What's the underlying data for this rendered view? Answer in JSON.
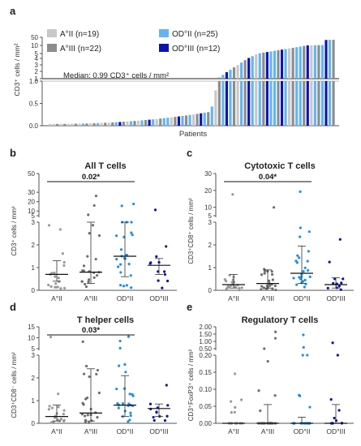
{
  "panel_letters": [
    "a",
    "b",
    "c",
    "d",
    "e"
  ],
  "colors": {
    "A_II": "#c8c8c8",
    "A_III": "#8c8c8c",
    "OD_II": "#64b4f0",
    "OD_III": "#0a14b4",
    "A_II_dot": "#9a9a9a",
    "A_III_dot": "#6e6e6e",
    "OD_II_dot": "#1e90e6",
    "OD_III_dot": "#0a14a0",
    "axis": "#555555"
  },
  "chart_data": [
    {
      "id": "a",
      "type": "bar",
      "ylabel": "CD3⁺ cells / mm²",
      "xlabel": "Patients",
      "legend": [
        {
          "label": "A°II (n=19)",
          "color": "#c8c8c8"
        },
        {
          "label": "A°III (n=22)",
          "color": "#8c8c8c"
        },
        {
          "label": "OD°II (n=25)",
          "color": "#64b4f0"
        },
        {
          "label": "OD°III (n=12)",
          "color": "#0a14b4"
        }
      ],
      "legend_placement": "top-left",
      "annotation": "Median: 0.99 CD3⁺ cells / mm²",
      "y_ticks_lower": [
        "0.0",
        "0.5",
        "1.0"
      ],
      "y_ticks_upper": [
        "1",
        "2",
        "3",
        "4",
        "5",
        "10",
        "50"
      ],
      "median": 0.99
    },
    {
      "id": "b",
      "type": "scatter",
      "title": "All T cells",
      "ylabel": "CD3⁺ cells / mm²",
      "categories": [
        "A°II",
        "A°III",
        "OD°II",
        "OD°III"
      ],
      "y_ticks_lower": [
        "0",
        "1",
        "2",
        "3"
      ],
      "y_ticks_upper": [
        "5",
        "10",
        "20",
        "30",
        "50"
      ],
      "medians": [
        0.7,
        0.8,
        1.5,
        1.1
      ],
      "iqr": [
        [
          0.4,
          1.3
        ],
        [
          0.3,
          3.7
        ],
        [
          0.6,
          3.6
        ],
        [
          0.7,
          1.4
        ]
      ],
      "significance": {
        "from": 0,
        "to": 2,
        "label": "0.02*"
      }
    },
    {
      "id": "c",
      "type": "scatter",
      "title": "Cytotoxic T cells",
      "ylabel": "CD3⁺CD8⁺ cells / mm²",
      "categories": [
        "A°II",
        "A°III",
        "OD°II",
        "OD°III"
      ],
      "y_ticks_lower": [
        "0",
        "1",
        "2",
        "3"
      ],
      "y_ticks_upper": [
        "5",
        "10",
        "20",
        "30"
      ],
      "medians": [
        0.25,
        0.3,
        0.75,
        0.25
      ],
      "iqr": [
        [
          0.1,
          0.7
        ],
        [
          0.1,
          0.9
        ],
        [
          0.3,
          1.95
        ],
        [
          0.1,
          0.55
        ]
      ],
      "significance": {
        "from": 0,
        "to": 2,
        "label": "0.04*"
      }
    },
    {
      "id": "d",
      "type": "scatter",
      "title": "T helper cells",
      "ylabel": "CD3⁺CD8⁻ cells / mm²",
      "categories": [
        "A°II",
        "A°III",
        "OD°II",
        "OD°III"
      ],
      "y_ticks_lower": [
        "0",
        "1",
        "2",
        "3"
      ],
      "y_ticks_upper": [
        "5",
        "10",
        "15"
      ],
      "medians": [
        0.3,
        0.45,
        0.8,
        0.65
      ],
      "iqr": [
        [
          0.1,
          0.8
        ],
        [
          0.1,
          2.4
        ],
        [
          0.3,
          2.1
        ],
        [
          0.3,
          0.85
        ]
      ],
      "significance": {
        "from": 0,
        "to": 2,
        "label": "0.03*"
      }
    },
    {
      "id": "e",
      "type": "scatter",
      "title": "Regulatory T cells",
      "ylabel": "CD3⁺FoxP3⁺ cells / mm²",
      "categories": [
        "A°II",
        "A°III",
        "OD°II",
        "OD°III"
      ],
      "y_ticks_lower": [
        "0.00",
        "0.05",
        "0.10",
        "0.15",
        "0.20"
      ],
      "y_ticks_upper": [
        "0.50",
        "1.00",
        "1.50",
        "2.00"
      ],
      "medians": [
        0.0,
        0.0,
        0.0,
        0.0
      ],
      "iqr": [
        [
          0.0,
          0.0
        ],
        [
          0.0,
          0.055
        ],
        [
          0.0,
          0.018
        ],
        [
          0.0,
          0.055
        ]
      ]
    }
  ]
}
